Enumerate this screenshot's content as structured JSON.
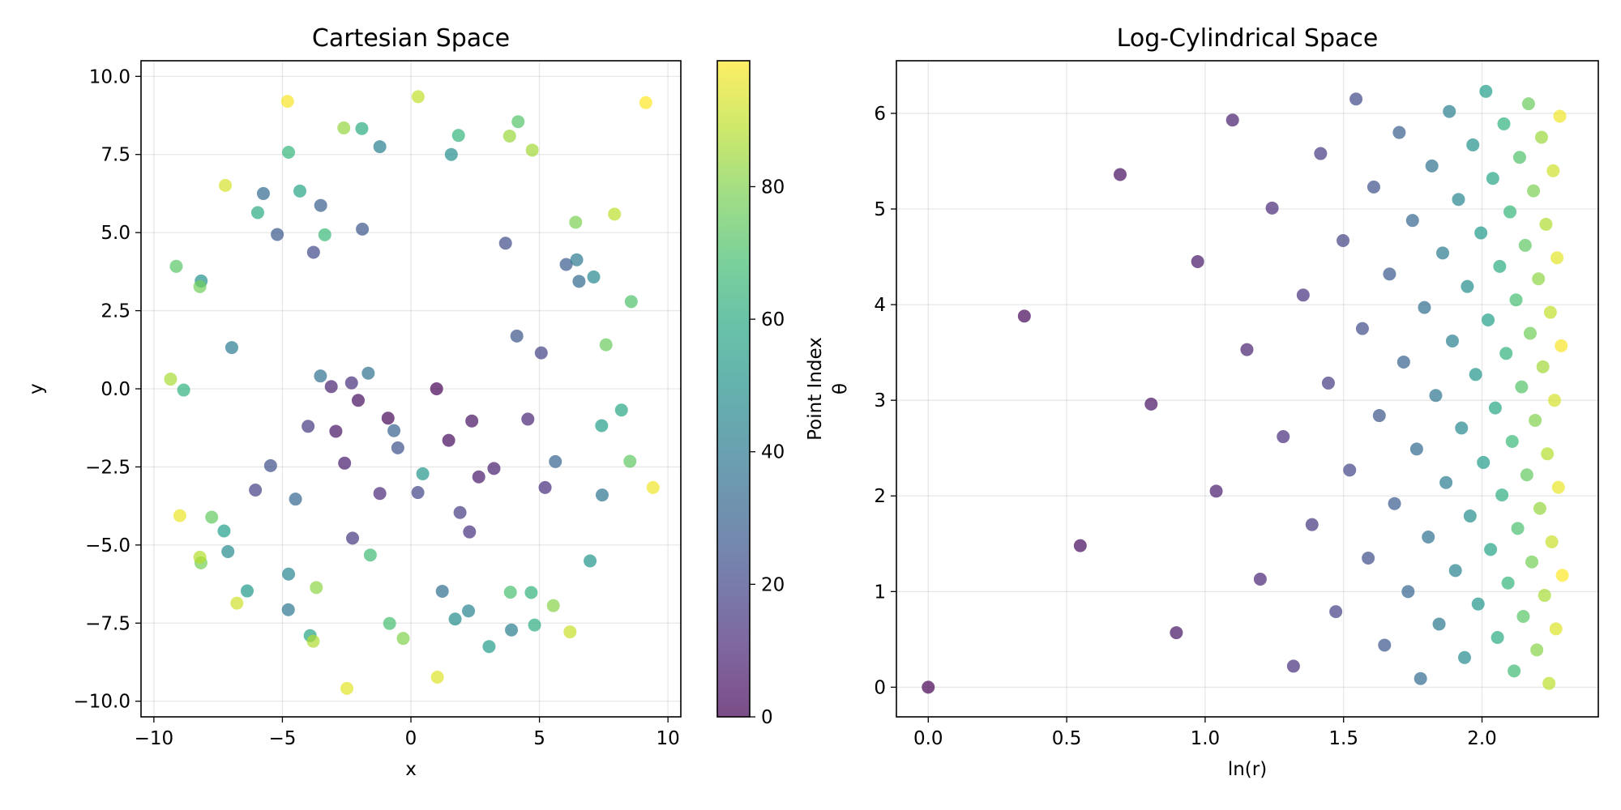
{
  "chart_data": [
    {
      "type": "scatter",
      "title": "Cartesian Space",
      "xlabel": "x",
      "ylabel": "y",
      "xlim": [
        -10.5,
        10.5
      ],
      "ylim": [
        -10.5,
        10.5
      ],
      "xticks": [
        -10,
        -5,
        0,
        5,
        10
      ],
      "xtick_labels": [
        "−10",
        "−5",
        "0",
        "5",
        "10"
      ],
      "yticks": [
        -10,
        -7.5,
        -5,
        -2.5,
        0,
        2.5,
        5,
        7.5,
        10
      ],
      "ytick_labels": [
        "−10.0",
        "−7.5",
        "−5.0",
        "−2.5",
        "0.0",
        "2.5",
        "5.0",
        "7.5",
        "10.0"
      ],
      "grid": true,
      "color_by": "point_index",
      "colormap": "viridis",
      "marker_alpha": 0.7,
      "x": [
        1.0,
        -0.89,
        1.47,
        -2.05,
        2.37,
        -2.92,
        2.64,
        -2.58,
        3.23,
        -3.1,
        4.55,
        -1.21,
        5.22,
        -2.31,
        2.28,
        -2.27,
        -4.0,
        1.91,
        -6.05,
        5.07,
        0.27,
        -3.79,
        3.68,
        -5.46,
        -0.51,
        4.12,
        -1.89,
        -5.2,
        6.04,
        -3.51,
        -0.66,
        5.62,
        -4.49,
        6.54,
        -5.74,
        1.22,
        -3.52,
        -1.66,
        7.44,
        -4.77,
        6.45,
        -6.97,
        3.91,
        -1.21,
        2.24,
        -4.76,
        7.11,
        -7.12,
        1.72,
        1.57,
        -8.16,
        6.97,
        0.46,
        -6.37,
        3.04,
        -7.27,
        7.42,
        -3.92,
        -4.32,
        8.19,
        -5.96,
        -1.91,
        4.81,
        -8.84,
        4.68,
        1.85,
        -4.76,
        -3.35,
        -1.58,
        -0.83,
        3.87,
        8.57,
        4.17,
        -9.13,
        8.52,
        -7.75,
        7.59,
        -8.21,
        -8.17,
        6.41,
        -0.3,
        5.54,
        -3.68,
        -2.61,
        3.84,
        4.72,
        -9.35,
        -3.8,
        -8.21,
        7.92,
        0.28,
        6.19,
        -6.77,
        -7.22,
        1.03,
        -2.49,
        -8.99,
        9.42,
        -4.8,
        9.14
      ],
      "y": [
        0.0,
        -0.94,
        -1.65,
        -0.37,
        -1.03,
        -1.36,
        -2.82,
        -2.38,
        -2.55,
        0.07,
        -0.97,
        -3.35,
        -3.16,
        0.19,
        -4.58,
        -4.78,
        -1.2,
        -3.96,
        -3.24,
        1.15,
        -3.32,
        4.37,
        4.66,
        -2.46,
        -1.89,
        1.69,
        5.11,
        4.94,
        3.98,
        5.87,
        -1.34,
        -2.33,
        -3.53,
        3.44,
        6.25,
        -6.48,
        0.41,
        0.5,
        -3.4,
        -7.07,
        4.13,
        1.32,
        -7.72,
        7.75,
        -7.11,
        -5.93,
        3.58,
        -5.21,
        -7.37,
        7.5,
        3.45,
        -5.51,
        -2.72,
        -6.47,
        -8.25,
        -4.55,
        -1.18,
        -7.9,
        6.33,
        -0.68,
        5.64,
        8.33,
        -7.56,
        -0.04,
        -6.52,
        8.11,
        7.57,
        4.93,
        -5.32,
        -7.51,
        -6.51,
        2.79,
        8.55,
        3.92,
        -2.32,
        -4.11,
        1.41,
        3.27,
        -5.57,
        5.33,
        -7.99,
        -6.94,
        -6.36,
        8.35,
        8.09,
        7.64,
        0.31,
        -8.08,
        -5.39,
        5.59,
        9.35,
        -7.78,
        -6.86,
        6.51,
        -9.23,
        -9.59,
        -4.06,
        -3.16,
        9.2,
        9.16
      ]
    },
    {
      "type": "scatter",
      "title": "Log-Cylindrical Space",
      "xlabel": "ln(r)",
      "ylabel": "θ",
      "xlim": [
        -0.115,
        2.42
      ],
      "ylim": [
        -0.31,
        6.55
      ],
      "xticks": [
        0.0,
        0.5,
        1.0,
        1.5,
        2.0
      ],
      "xtick_labels": [
        "0.0",
        "0.5",
        "1.0",
        "1.5",
        "2.0"
      ],
      "yticks": [
        0,
        1,
        2,
        3,
        4,
        5,
        6
      ],
      "ytick_labels": [
        "0",
        "1",
        "2",
        "3",
        "4",
        "5",
        "6"
      ],
      "grid": true,
      "color_by": "point_index",
      "colormap": "viridis",
      "marker_alpha": 0.7,
      "x": [
        0.0,
        0.347,
        0.549,
        0.693,
        0.805,
        0.896,
        0.973,
        1.04,
        1.099,
        1.151,
        1.199,
        1.242,
        1.282,
        1.319,
        1.354,
        1.386,
        1.417,
        1.445,
        1.472,
        1.498,
        1.522,
        1.545,
        1.568,
        1.589,
        1.609,
        1.629,
        1.648,
        1.666,
        1.684,
        1.701,
        1.717,
        1.733,
        1.749,
        1.764,
        1.778,
        1.792,
        1.806,
        1.819,
        1.833,
        1.845,
        1.858,
        1.87,
        1.882,
        1.893,
        1.904,
        1.915,
        1.926,
        1.937,
        1.947,
        1.957,
        1.967,
        1.977,
        1.986,
        1.996,
        2.005,
        2.014,
        2.022,
        2.031,
        2.039,
        2.048,
        2.056,
        2.064,
        2.072,
        2.079,
        2.087,
        2.094,
        2.101,
        2.109,
        2.116,
        2.123,
        2.129,
        2.136,
        2.143,
        2.149,
        2.156,
        2.162,
        2.168,
        2.174,
        2.18,
        2.186,
        2.192,
        2.198,
        2.204,
        2.209,
        2.215,
        2.22,
        2.226,
        2.231,
        2.236,
        2.242,
        2.247,
        2.252,
        2.257,
        2.262,
        2.267,
        2.271,
        2.276,
        2.281,
        2.286,
        2.29
      ],
      "y": [
        0.0,
        3.88,
        1.48,
        5.36,
        2.96,
        0.57,
        4.45,
        2.05,
        5.93,
        3.53,
        1.13,
        5.01,
        2.62,
        0.22,
        4.1,
        1.7,
        5.58,
        3.18,
        0.79,
        4.67,
        2.27,
        6.15,
        3.75,
        1.35,
        5.23,
        2.84,
        0.44,
        4.32,
        1.92,
        5.8,
        3.4,
        1.0,
        4.88,
        2.49,
        0.09,
        3.97,
        1.57,
        5.45,
        3.05,
        0.66,
        4.54,
        2.14,
        6.02,
        3.62,
        1.22,
        5.1,
        2.71,
        0.31,
        4.19,
        1.79,
        5.67,
        3.27,
        0.87,
        4.75,
        2.35,
        6.23,
        3.84,
        1.44,
        5.32,
        2.92,
        0.52,
        4.4,
        2.01,
        5.89,
        3.49,
        1.09,
        4.97,
        2.57,
        0.17,
        4.05,
        1.66,
        5.54,
        3.14,
        0.74,
        4.62,
        2.22,
        6.1,
        3.7,
        1.31,
        5.19,
        2.79,
        0.39,
        4.27,
        1.87,
        5.75,
        3.35,
        0.96,
        4.84,
        2.44,
        0.04,
        3.92,
        1.52,
        5.4,
        3.0,
        0.61,
        4.49,
        2.09,
        5.97,
        3.57,
        1.17
      ]
    }
  ],
  "colorbar": {
    "label": "Point Index",
    "range": [
      0,
      99
    ],
    "ticks": [
      0,
      20,
      40,
      60,
      80
    ],
    "tick_labels": [
      "0",
      "20",
      "40",
      "60",
      "80"
    ],
    "colormap": "viridis"
  }
}
